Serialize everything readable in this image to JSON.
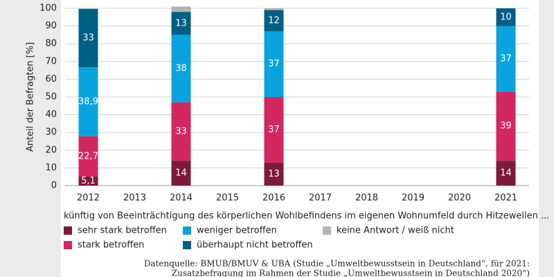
{
  "chart_data": {
    "type": "stacked_bar",
    "ylabel": "Anteil der Befragten [%]",
    "xlabel": "künftig von Beeinträchtigung des körperlichen Wohlbefindens im eigenen Wohnumfeld durch Hitzewellen ...",
    "categories": [
      "2012",
      "2013",
      "2014",
      "2015",
      "2016",
      "2017",
      "2018",
      "2019",
      "2020",
      "2021"
    ],
    "series": [
      {
        "name": "sehr stark betroffen",
        "color": "#7d1a3c",
        "values": [
          5.1,
          null,
          14,
          null,
          13,
          null,
          null,
          null,
          null,
          14
        ],
        "value_labels": [
          "5,1",
          null,
          "14",
          null,
          "13",
          null,
          null,
          null,
          null,
          "14"
        ]
      },
      {
        "name": "stark betroffen",
        "color": "#d2285f",
        "values": [
          22.7,
          null,
          33,
          null,
          37,
          null,
          null,
          null,
          null,
          39
        ],
        "value_labels": [
          "22,7",
          null,
          "33",
          null,
          "37",
          null,
          null,
          null,
          null,
          "39"
        ]
      },
      {
        "name": "weniger betroffen",
        "color": "#0ba3de",
        "values": [
          38.9,
          null,
          38,
          null,
          37,
          null,
          null,
          null,
          null,
          37
        ],
        "value_labels": [
          "38,9",
          null,
          "38",
          null,
          "37",
          null,
          null,
          null,
          null,
          "37"
        ]
      },
      {
        "name": "überhaupt nicht betroffen",
        "color": "#005f84",
        "values": [
          33,
          null,
          13,
          null,
          12,
          null,
          null,
          null,
          null,
          10
        ],
        "value_labels": [
          "33",
          null,
          "13",
          null,
          "12",
          null,
          null,
          null,
          null,
          "10"
        ]
      },
      {
        "name": "keine Antwort / weiß nicht",
        "color": "#b4b4b4",
        "values": [
          0,
          null,
          3,
          null,
          1,
          null,
          null,
          null,
          null,
          0
        ]
      }
    ],
    "ylim": [
      0,
      100
    ],
    "yticks": [
      0,
      10,
      20,
      30,
      40,
      50,
      60,
      70,
      80,
      90,
      100
    ],
    "grid": true,
    "source": [
      "Datenquelle: BMUB/BMUV & UBA (Studie „Umweltbewusstsein in Deutschland“, für 2021:",
      "Zusatzbefragung im Rahmen der Studie „Umweltbewusstsein in Deutschland 2020“)"
    ]
  }
}
